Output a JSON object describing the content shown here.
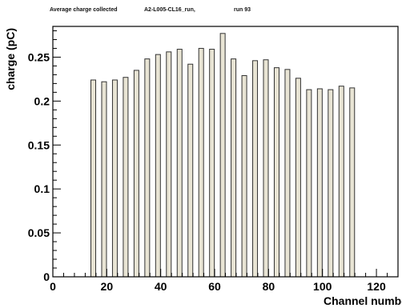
{
  "chart_data": {
    "type": "bar",
    "title_parts": [
      "Average charge collected",
      "A2-L005-CL16_run,",
      "run 93"
    ],
    "xlabel": "Channel numbe",
    "ylabel": "charge (pC)",
    "xlim": [
      0,
      128
    ],
    "ylim": [
      0,
      0.285
    ],
    "x_ticks": [
      0,
      20,
      40,
      60,
      80,
      100,
      120
    ],
    "x_tick_labels": [
      "0",
      "20",
      "40",
      "60",
      "80",
      "100",
      "120"
    ],
    "y_ticks": [
      0,
      0.05,
      0.1,
      0.15,
      0.2,
      0.25
    ],
    "y_tick_labels": [
      "0",
      "0.05",
      "0.1",
      "0.15",
      "0.2",
      "0.25"
    ],
    "grid": false,
    "bar_fill": "#e8e4d4",
    "bar_stroke": "#333333",
    "series": [
      {
        "x": [
          15,
          19,
          23,
          27,
          31,
          35,
          39,
          43,
          47,
          51,
          55,
          59,
          63,
          67,
          71,
          75,
          79,
          83,
          87,
          91,
          95,
          99,
          103,
          107,
          111
        ],
        "values": [
          0.224,
          0.222,
          0.224,
          0.227,
          0.235,
          0.248,
          0.253,
          0.256,
          0.259,
          0.242,
          0.26,
          0.259,
          0.277,
          0.248,
          0.229,
          0.246,
          0.247,
          0.238,
          0.236,
          0.226,
          0.213,
          0.214,
          0.213,
          0.217,
          0.215
        ]
      }
    ]
  }
}
